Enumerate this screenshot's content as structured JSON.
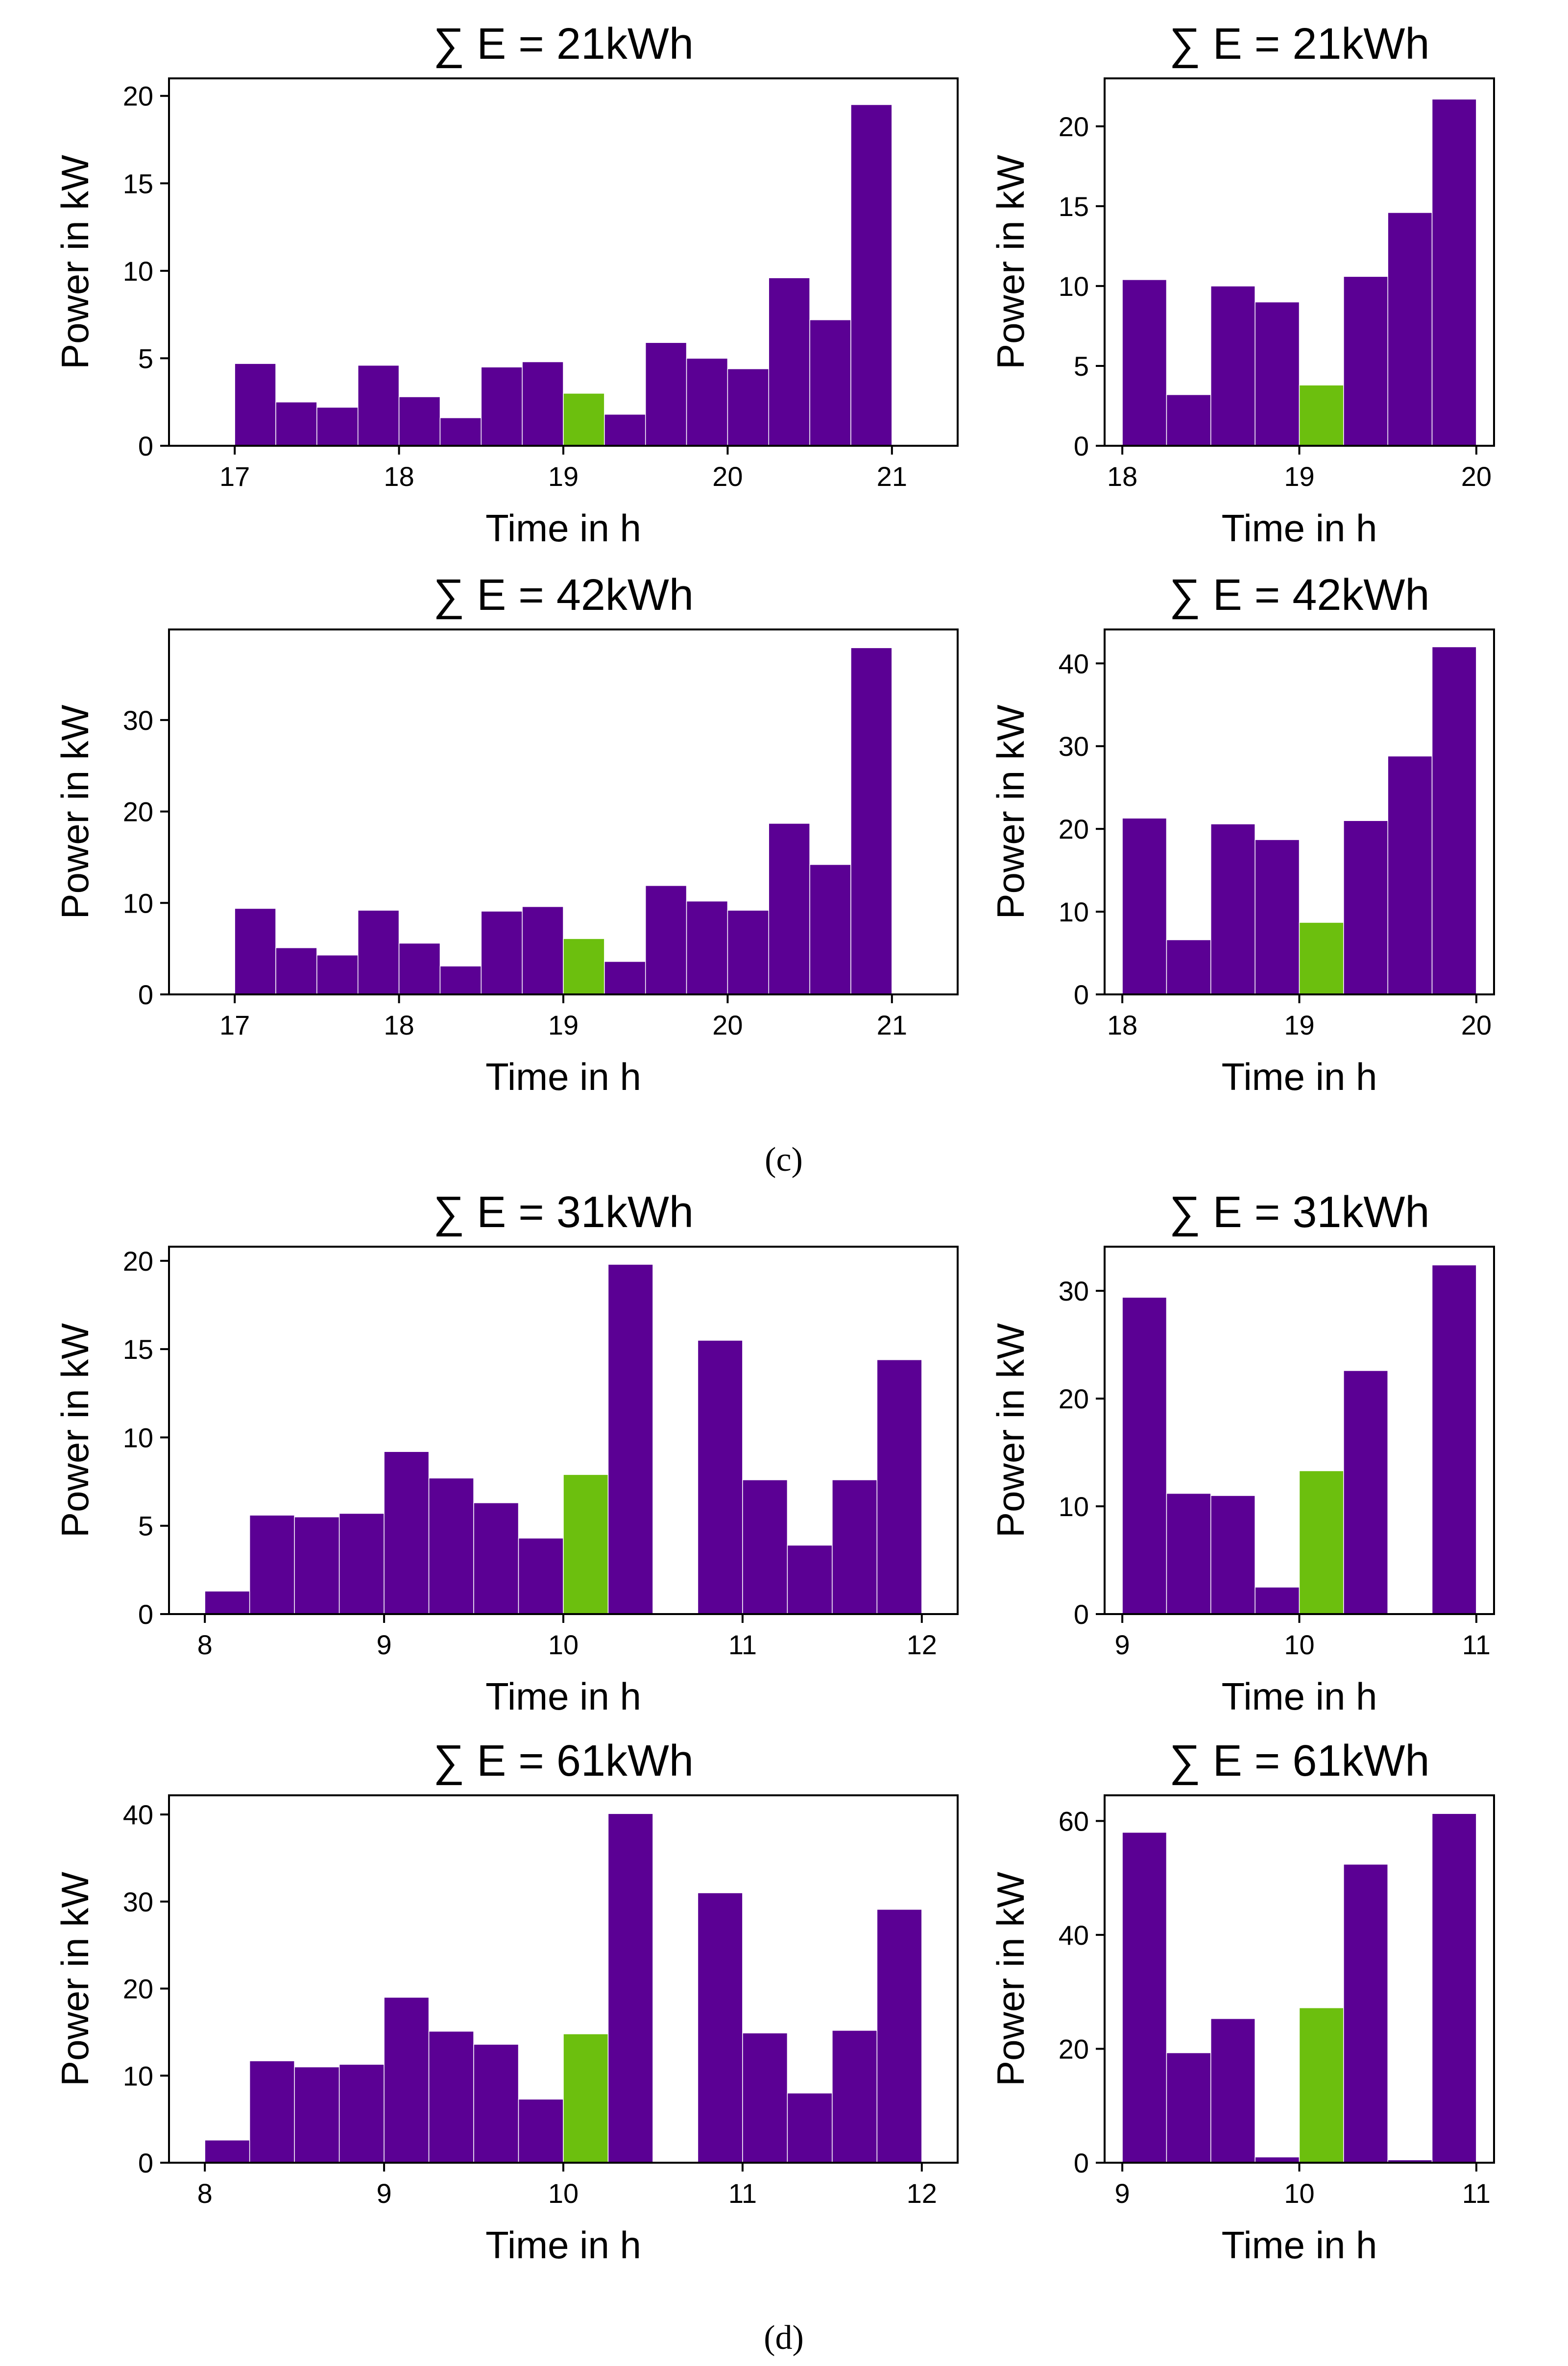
{
  "captions": [
    "(c)",
    "(d)"
  ],
  "colors": {
    "bar": "#5b0094",
    "highlight": "#6cbf0e"
  },
  "chart_data": [
    {
      "type": "bar",
      "title": "∑ E = 21kWh",
      "xlabel": "Time in h",
      "ylabel": "Power in kW",
      "xlim": [
        16.6,
        21.4
      ],
      "ylim": [
        0,
        21
      ],
      "xticks": [
        17,
        18,
        19,
        20,
        21
      ],
      "yticks": [
        0,
        5,
        10,
        15,
        20
      ],
      "bin_start": 17,
      "bin_width": 0.25,
      "highlight_index": 8,
      "values": [
        4.7,
        2.5,
        2.2,
        4.6,
        2.8,
        1.6,
        4.5,
        4.8,
        3.0,
        1.8,
        5.9,
        5.0,
        4.4,
        9.6,
        7.2,
        19.5
      ]
    },
    {
      "type": "bar",
      "title": "∑ E = 21kWh",
      "xlabel": "Time in h",
      "ylabel": "Power in kW",
      "xlim": [
        17.9,
        20.1
      ],
      "ylim": [
        0,
        23
      ],
      "xticks": [
        18,
        19,
        20
      ],
      "yticks": [
        0,
        5,
        10,
        15,
        20
      ],
      "bin_start": 18,
      "bin_width": 0.25,
      "highlight_index": 4,
      "values": [
        10.4,
        3.2,
        10.0,
        9.0,
        3.8,
        10.6,
        14.6,
        21.7
      ]
    },
    {
      "type": "bar",
      "title": "∑ E = 42kWh",
      "xlabel": "Time in h",
      "ylabel": "Power in kW",
      "xlim": [
        16.6,
        21.4
      ],
      "ylim": [
        0,
        39.9
      ],
      "xticks": [
        17,
        18,
        19,
        20,
        21
      ],
      "yticks": [
        0,
        10,
        20,
        30
      ],
      "bin_start": 17,
      "bin_width": 0.25,
      "highlight_index": 8,
      "values": [
        9.4,
        5.1,
        4.3,
        9.2,
        5.6,
        3.1,
        9.1,
        9.6,
        6.1,
        3.6,
        11.9,
        10.2,
        9.2,
        18.7,
        14.2,
        37.9
      ]
    },
    {
      "type": "bar",
      "title": "∑ E = 42kWh",
      "xlabel": "Time in h",
      "ylabel": "Power in kW",
      "xlim": [
        17.9,
        20.1
      ],
      "ylim": [
        0,
        44.1
      ],
      "xticks": [
        18,
        19,
        20
      ],
      "yticks": [
        0,
        10,
        20,
        30,
        40
      ],
      "bin_start": 18,
      "bin_width": 0.25,
      "highlight_index": 4,
      "values": [
        21.3,
        6.6,
        20.6,
        18.7,
        8.7,
        21.0,
        28.8,
        42.0
      ]
    },
    {
      "type": "bar",
      "title": "∑ E = 31kWh",
      "xlabel": "Time in h",
      "ylabel": "Power in kW",
      "xlim": [
        7.8,
        12.2
      ],
      "ylim": [
        0,
        20.8
      ],
      "xticks": [
        8,
        9,
        10,
        11,
        12
      ],
      "yticks": [
        0,
        5,
        10,
        15,
        20
      ],
      "bin_start": 8,
      "bin_width": 0.25,
      "highlight_index": 8,
      "values": [
        1.3,
        5.6,
        5.5,
        5.7,
        9.2,
        7.7,
        6.3,
        4.3,
        7.9,
        19.8,
        0,
        15.5,
        7.6,
        3.9,
        7.6,
        14.4
      ]
    },
    {
      "type": "bar",
      "title": "∑ E = 31kWh",
      "xlabel": "Time in h",
      "ylabel": "Power in kW",
      "xlim": [
        8.9,
        11.1
      ],
      "ylim": [
        0,
        34.1
      ],
      "xticks": [
        9,
        10,
        11
      ],
      "yticks": [
        0,
        10,
        20,
        30
      ],
      "bin_start": 9,
      "bin_width": 0.25,
      "highlight_index": 4,
      "values": [
        29.4,
        11.2,
        11.0,
        2.5,
        13.3,
        22.6,
        0,
        32.4
      ]
    },
    {
      "type": "bar",
      "title": "∑ E = 61kWh",
      "xlabel": "Time in h",
      "ylabel": "Power in kW",
      "xlim": [
        7.8,
        12.2
      ],
      "ylim": [
        0,
        42.2
      ],
      "xticks": [
        8,
        9,
        10,
        11,
        12
      ],
      "yticks": [
        0,
        10,
        20,
        30,
        40
      ],
      "bin_start": 8,
      "bin_width": 0.25,
      "highlight_index": 8,
      "values": [
        2.6,
        11.7,
        11.0,
        11.3,
        19.0,
        15.1,
        13.6,
        7.3,
        14.8,
        40.1,
        0,
        31.0,
        14.9,
        8.0,
        15.2,
        29.1
      ]
    },
    {
      "type": "bar",
      "title": "∑ E = 61kWh",
      "xlabel": "Time in h",
      "ylabel": "Power in kW",
      "xlim": [
        8.9,
        11.1
      ],
      "ylim": [
        0,
        64.5
      ],
      "xticks": [
        9,
        10,
        11
      ],
      "yticks": [
        0,
        20,
        40,
        60
      ],
      "bin_start": 9,
      "bin_width": 0.25,
      "highlight_index": 4,
      "values": [
        58.0,
        19.3,
        25.3,
        1.0,
        27.2,
        52.4,
        0.5,
        61.3
      ]
    }
  ]
}
